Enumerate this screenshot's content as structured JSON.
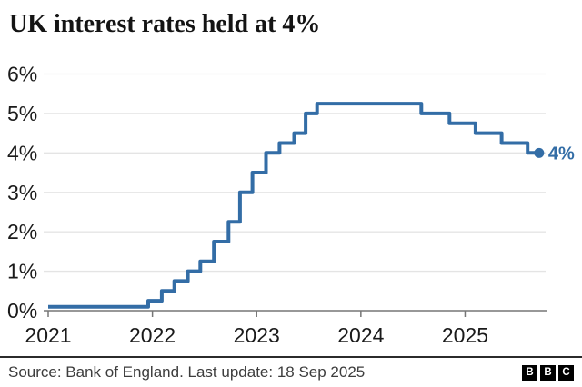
{
  "title": "UK interest rates held at 4%",
  "footer": {
    "source": "Source: Bank of England. Last update: 18 Sep 2025",
    "logo_letters": [
      "B",
      "B",
      "C"
    ]
  },
  "chart_data": {
    "type": "line",
    "step": true,
    "title": "UK interest rates held at 4%",
    "ylabel": "",
    "xlabel": "",
    "grid": true,
    "legend": "none",
    "line_color": "#336da6",
    "grid_color": "#e4e4e4",
    "axis_color": "#767676",
    "tick_label_color": "#1a1a1a",
    "end_label": "4%",
    "end_value": 4.0,
    "xlim": [
      2021,
      2025.79
    ],
    "ylim": [
      0,
      6
    ],
    "y_ticks": [
      {
        "v": 0,
        "label": "0%"
      },
      {
        "v": 1,
        "label": "1%"
      },
      {
        "v": 2,
        "label": "2%"
      },
      {
        "v": 3,
        "label": "3%"
      },
      {
        "v": 4,
        "label": "4%"
      },
      {
        "v": 5,
        "label": "5%"
      },
      {
        "v": 6,
        "label": "6%"
      }
    ],
    "x_ticks": [
      {
        "v": 2021,
        "label": "2021"
      },
      {
        "v": 2022,
        "label": "2022"
      },
      {
        "v": 2023,
        "label": "2023"
      },
      {
        "v": 2024,
        "label": "2024"
      },
      {
        "v": 2025,
        "label": "2025"
      }
    ],
    "points": [
      {
        "x": 2021.0,
        "y": 0.1
      },
      {
        "x": 2021.96,
        "y": 0.25
      },
      {
        "x": 2022.09,
        "y": 0.5
      },
      {
        "x": 2022.21,
        "y": 0.75
      },
      {
        "x": 2022.34,
        "y": 1.0
      },
      {
        "x": 2022.46,
        "y": 1.25
      },
      {
        "x": 2022.59,
        "y": 1.75
      },
      {
        "x": 2022.73,
        "y": 2.25
      },
      {
        "x": 2022.84,
        "y": 3.0
      },
      {
        "x": 2022.96,
        "y": 3.5
      },
      {
        "x": 2023.09,
        "y": 4.0
      },
      {
        "x": 2023.22,
        "y": 4.25
      },
      {
        "x": 2023.36,
        "y": 4.5
      },
      {
        "x": 2023.47,
        "y": 5.0
      },
      {
        "x": 2023.58,
        "y": 5.25
      },
      {
        "x": 2024.58,
        "y": 5.0
      },
      {
        "x": 2024.85,
        "y": 4.75
      },
      {
        "x": 2025.1,
        "y": 4.5
      },
      {
        "x": 2025.35,
        "y": 4.25
      },
      {
        "x": 2025.6,
        "y": 4.0
      },
      {
        "x": 2025.71,
        "y": 4.0
      }
    ]
  }
}
